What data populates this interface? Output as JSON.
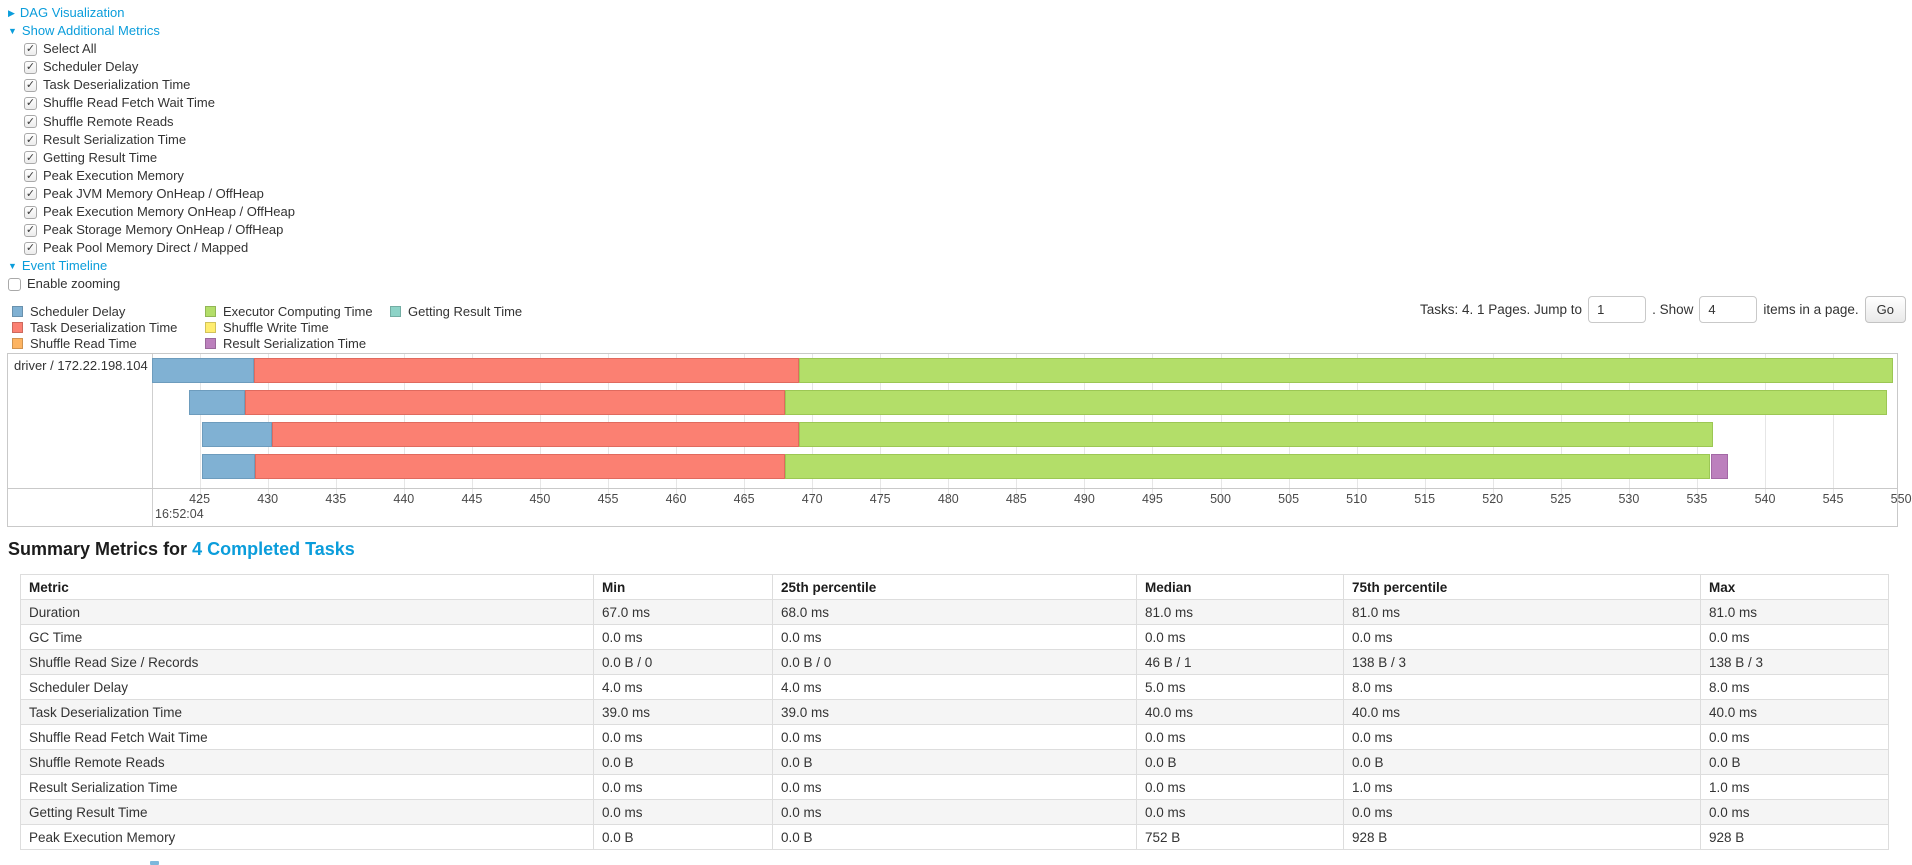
{
  "colors": {
    "link": "#0b9ddb",
    "scheduler_delay": "#80B1D3",
    "task_deserialization": "#FB8072",
    "shuffle_read": "#FDB462",
    "executor_computing": "#B3DE69",
    "shuffle_write": "#FFED6F",
    "result_serialization": "#BC80BD",
    "getting_result": "#8DD3C7"
  },
  "controls": {
    "dag": {
      "label": "DAG Visualization",
      "caret": "▶",
      "expanded": false
    },
    "metrics_toggle": {
      "label": "Show Additional Metrics",
      "caret": "▼",
      "expanded": true
    },
    "metric_checkboxes": [
      {
        "label": "Select All",
        "checked": true
      },
      {
        "label": "Scheduler Delay",
        "checked": true
      },
      {
        "label": "Task Deserialization Time",
        "checked": true
      },
      {
        "label": "Shuffle Read Fetch Wait Time",
        "checked": true
      },
      {
        "label": "Shuffle Remote Reads",
        "checked": true
      },
      {
        "label": "Result Serialization Time",
        "checked": true
      },
      {
        "label": "Getting Result Time",
        "checked": true
      },
      {
        "label": "Peak Execution Memory",
        "checked": true
      },
      {
        "label": "Peak JVM Memory OnHeap / OffHeap",
        "checked": true
      },
      {
        "label": "Peak Execution Memory OnHeap / OffHeap",
        "checked": true
      },
      {
        "label": "Peak Storage Memory OnHeap / OffHeap",
        "checked": true
      },
      {
        "label": "Peak Pool Memory Direct / Mapped",
        "checked": true
      }
    ],
    "event_timeline": {
      "label": "Event Timeline",
      "caret": "▼",
      "expanded": true
    },
    "enable_zooming": {
      "label": "Enable zooming",
      "checked": false
    }
  },
  "legend": {
    "columns": [
      [
        {
          "label": "Scheduler Delay",
          "type": "scheduler_delay",
          "color": "#80B1D3"
        },
        {
          "label": "Task Deserialization Time",
          "type": "task_deserialization",
          "color": "#FB8072"
        },
        {
          "label": "Shuffle Read Time",
          "type": "shuffle_read",
          "color": "#FDB462"
        }
      ],
      [
        {
          "label": "Executor Computing Time",
          "type": "executor_computing",
          "color": "#B3DE69"
        },
        {
          "label": "Shuffle Write Time",
          "type": "shuffle_write",
          "color": "#FFED6F"
        },
        {
          "label": "Result Serialization Time",
          "type": "result_serialization",
          "color": "#BC80BD"
        }
      ],
      [
        {
          "label": "Getting Result Time",
          "type": "getting_result",
          "color": "#8DD3C7"
        }
      ]
    ]
  },
  "pagination": {
    "prefix": "Tasks: 4. 1 Pages. Jump to",
    "jump_value": "1",
    "mid": ". Show",
    "show_value": "4",
    "suffix": "items in a page.",
    "go_label": "Go"
  },
  "chart_data": {
    "type": "timeline",
    "row_label": "driver / 172.22.198.104",
    "time_major_label": "16:52:04",
    "axis": {
      "min": 421.5,
      "max": 549.7,
      "tick_start": 425,
      "tick_step": 5,
      "tick_end": 550,
      "unit": "ms within second 16:52:04"
    },
    "tasks": [
      {
        "segments": [
          {
            "type": "scheduler_delay",
            "start": 421.5,
            "end": 429.0
          },
          {
            "type": "task_deserialization",
            "start": 429.0,
            "end": 469.0
          },
          {
            "type": "executor_computing",
            "start": 469.0,
            "end": 549.4
          }
        ]
      },
      {
        "segments": [
          {
            "type": "scheduler_delay",
            "start": 424.2,
            "end": 428.3
          },
          {
            "type": "task_deserialization",
            "start": 428.3,
            "end": 468.0
          },
          {
            "type": "executor_computing",
            "start": 468.0,
            "end": 549.0
          }
        ]
      },
      {
        "segments": [
          {
            "type": "scheduler_delay",
            "start": 425.2,
            "end": 430.3
          },
          {
            "type": "task_deserialization",
            "start": 430.3,
            "end": 469.0
          },
          {
            "type": "executor_computing",
            "start": 469.0,
            "end": 536.2
          }
        ]
      },
      {
        "segments": [
          {
            "type": "scheduler_delay",
            "start": 425.2,
            "end": 429.1
          },
          {
            "type": "task_deserialization",
            "start": 429.1,
            "end": 468.0
          },
          {
            "type": "executor_computing",
            "start": 468.0,
            "end": 536.0
          },
          {
            "type": "result_serialization",
            "start": 536.0,
            "end": 537.3
          }
        ]
      }
    ]
  },
  "summary": {
    "title_prefix": "Summary Metrics for",
    "title_link": "4 Completed Tasks",
    "table": {
      "headers": [
        "Metric",
        "Min",
        "25th percentile",
        "Median",
        "75th percentile",
        "Max"
      ],
      "rows": [
        [
          "Duration",
          "67.0 ms",
          "68.0 ms",
          "81.0 ms",
          "81.0 ms",
          "81.0 ms"
        ],
        [
          "GC Time",
          "0.0 ms",
          "0.0 ms",
          "0.0 ms",
          "0.0 ms",
          "0.0 ms"
        ],
        [
          "Shuffle Read Size / Records",
          "0.0 B / 0",
          "0.0 B / 0",
          "46 B / 1",
          "138 B / 3",
          "138 B / 3"
        ],
        [
          "Scheduler Delay",
          "4.0 ms",
          "4.0 ms",
          "5.0 ms",
          "8.0 ms",
          "8.0 ms"
        ],
        [
          "Task Deserialization Time",
          "39.0 ms",
          "39.0 ms",
          "40.0 ms",
          "40.0 ms",
          "40.0 ms"
        ],
        [
          "Shuffle Read Fetch Wait Time",
          "0.0 ms",
          "0.0 ms",
          "0.0 ms",
          "0.0 ms",
          "0.0 ms"
        ],
        [
          "Shuffle Remote Reads",
          "0.0 B",
          "0.0 B",
          "0.0 B",
          "0.0 B",
          "0.0 B"
        ],
        [
          "Result Serialization Time",
          "0.0 ms",
          "0.0 ms",
          "0.0 ms",
          "1.0 ms",
          "1.0 ms"
        ],
        [
          "Getting Result Time",
          "0.0 ms",
          "0.0 ms",
          "0.0 ms",
          "0.0 ms",
          "0.0 ms"
        ],
        [
          "Peak Execution Memory",
          "0.0 B",
          "0.0 B",
          "752 B",
          "928 B",
          "928 B"
        ]
      ]
    }
  }
}
